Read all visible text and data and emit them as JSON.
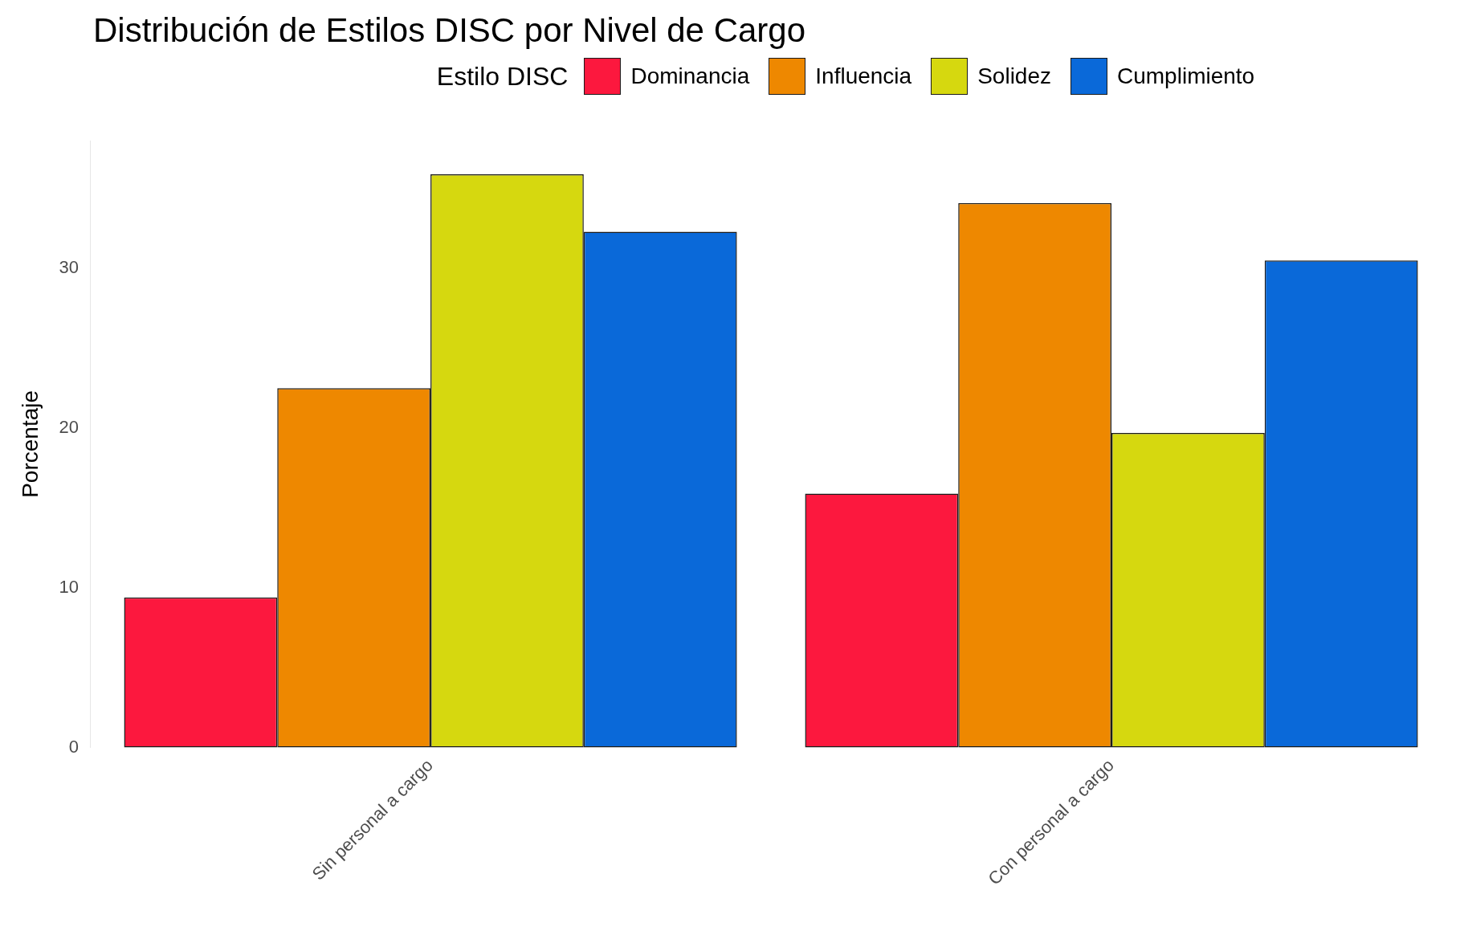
{
  "chart_data": {
    "type": "bar",
    "title": "Distribución de Estilos DISC por Nivel de Cargo",
    "ylabel": "Porcentaje",
    "legend_title": "Estilo DISC",
    "legend": "top",
    "grid": false,
    "categories": [
      "Sin personal a cargo",
      "Con personal a cargo"
    ],
    "series": [
      {
        "name": "Dominancia",
        "color": "#fc183e",
        "values": [
          9.4,
          15.9
        ]
      },
      {
        "name": "Influencia",
        "color": "#ee8800",
        "values": [
          22.5,
          34.1
        ]
      },
      {
        "name": "Solidez",
        "color": "#d6d80f",
        "values": [
          35.9,
          19.7
        ]
      },
      {
        "name": "Cumplimiento",
        "color": "#0a69d9",
        "values": [
          32.3,
          30.5
        ]
      }
    ],
    "ylim": [
      0,
      38
    ],
    "yticks": [
      0,
      10,
      20,
      30
    ]
  }
}
